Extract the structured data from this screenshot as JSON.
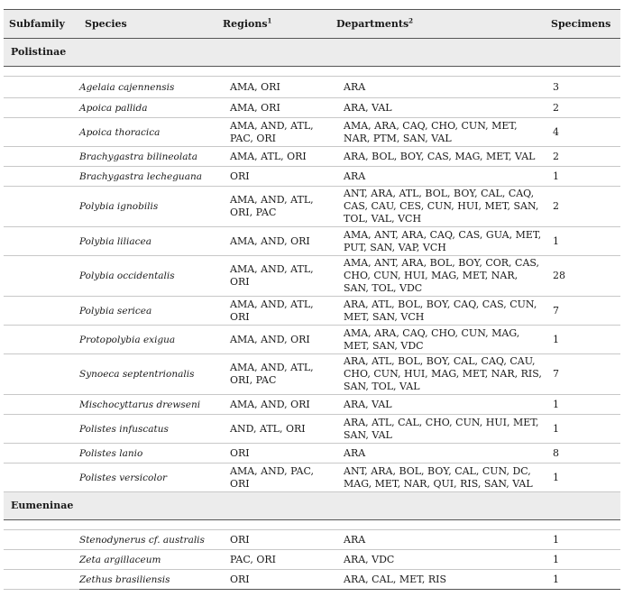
{
  "headers": {
    "subfamily": "Subfamily",
    "species": "Species",
    "regions": "Regions",
    "regions_sup": "1",
    "departments": "Departments",
    "departments_sup": "2",
    "specimens": "Specimens"
  },
  "groups": [
    {
      "subfamily": "Polistinae",
      "rows": [
        {
          "species": "Agelaia cajennensis",
          "regions": "AMA, ORI",
          "departments": "ARA",
          "specimens": "3"
        },
        {
          "species": "Apoica pallida",
          "regions": "AMA, ORI",
          "departments": "ARA, VAL",
          "specimens": "2"
        },
        {
          "species": "Apoica thoracica",
          "regions": "AMA, AND, ATL, PAC, ORI",
          "departments": "AMA, ARA, CAQ, CHO, CUN, MET, NAR, PTM, SAN, VAL",
          "specimens": "4"
        },
        {
          "species": "Brachygastra bilineolata",
          "regions": "AMA, ATL, ORI",
          "departments": "ARA, BOL, BOY, CAS, MAG, MET, VAL",
          "specimens": "2"
        },
        {
          "species": "Brachygastra lecheguana",
          "regions": "ORI",
          "departments": "ARA",
          "specimens": "1"
        },
        {
          "species": "Polybia ignobilis",
          "regions": "AMA, AND, ATL, ORI, PAC",
          "departments": "ANT, ARA, ATL, BOL, BOY, CAL, CAQ, CAS, CAU, CES, CUN, HUI, MET, SAN, TOL, VAL, VCH",
          "specimens": "2"
        },
        {
          "species": "Polybia liliacea",
          "regions": "AMA, AND, ORI",
          "departments": "AMA, ANT, ARA, CAQ, CAS, GUA, MET, PUT, SAN, VAP, VCH",
          "specimens": "1"
        },
        {
          "species": "Polybia occidentalis",
          "regions": "AMA, AND, ATL, ORI",
          "departments": "AMA, ANT, ARA, BOL, BOY, COR, CAS, CHO, CUN, HUI, MAG, MET, NAR, SAN, TOL, VDC",
          "specimens": "28"
        },
        {
          "species": "Polybia sericea",
          "regions": "AMA, AND, ATL, ORI",
          "departments": "ARA, ATL, BOL, BOY, CAQ, CAS, CUN, MET, SAN, VCH",
          "specimens": "7"
        },
        {
          "species": "Protopolybia exigua",
          "regions": "AMA, AND, ORI",
          "departments": "AMA, ARA, CAQ, CHO, CUN, MAG, MET, SAN, VDC",
          "specimens": "1"
        },
        {
          "species": "Synoeca septentrionalis",
          "regions": "AMA, AND, ATL, ORI, PAC",
          "departments": "ARA, ATL, BOL, BOY, CAL, CAQ, CAU, CHO, CUN, HUI, MAG, MET, NAR, RIS, SAN, TOL, VAL",
          "specimens": "7"
        },
        {
          "species": "Mischocyttarus drewseni",
          "regions": "AMA, AND, ORI",
          "departments": "ARA, VAL",
          "specimens": "1"
        },
        {
          "species": "Polistes infuscatus",
          "regions": "AND, ATL, ORI",
          "departments": "ARA, ATL, CAL, CHO, CUN, HUI, MET, SAN, VAL",
          "specimens": "1"
        },
        {
          "species": "Polistes lanio",
          "regions": "ORI",
          "departments": "ARA",
          "specimens": "8"
        },
        {
          "species": "Polistes versicolor",
          "regions": "AMA, AND, PAC, ORI",
          "departments": "ANT, ARA, BOL, BOY, CAL, CUN, DC, MAG, MET, NAR, QUI, RIS, SAN, VAL",
          "specimens": "1"
        }
      ]
    },
    {
      "subfamily": "Eumeninae",
      "rows": [
        {
          "species": "Stenodynerus cf. australis",
          "regions": "ORI",
          "departments": "ARA",
          "specimens": "1"
        },
        {
          "species": "Zeta argillaceum",
          "regions": "PAC, ORI",
          "departments": "ARA, VDC",
          "specimens": "1"
        },
        {
          "species": "Zethus brasiliensis",
          "regions": "ORI",
          "departments": "ARA, CAL, MET, RIS",
          "specimens": "1"
        }
      ]
    }
  ]
}
